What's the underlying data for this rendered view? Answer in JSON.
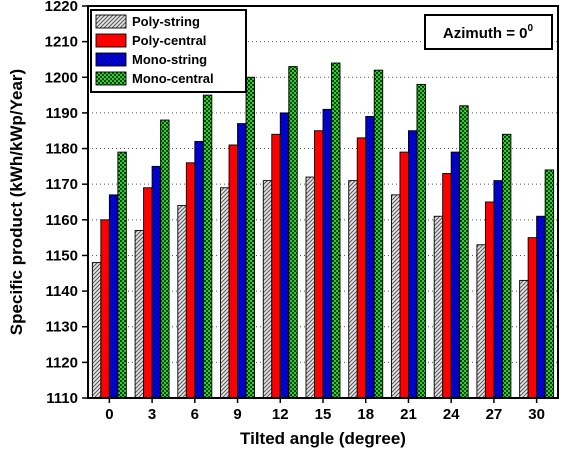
{
  "chart_data": {
    "type": "bar",
    "xlabel": "Tilted angle (degree)",
    "ylabel": "Specific product (kWh/kWp/Year)",
    "categories": [
      "0",
      "3",
      "6",
      "9",
      "12",
      "15",
      "18",
      "21",
      "24",
      "27",
      "30"
    ],
    "ylim": [
      1110,
      1220
    ],
    "yticks": [
      1110,
      1120,
      1130,
      1140,
      1150,
      1160,
      1170,
      1180,
      1190,
      1200,
      1210,
      1220
    ],
    "grid": "horizontal-dotted",
    "legend_position": "top-left",
    "annotation": {
      "text": "Azimuth = 0",
      "superscript": "0",
      "position": "top-right"
    },
    "series": [
      {
        "name": "Poly-string",
        "fill": "hatch-diagonal",
        "colors": {
          "fill": "#bdbdbd",
          "stroke": "#000000"
        },
        "values": [
          1148,
          1157,
          1164,
          1169,
          1171,
          1172,
          1171,
          1167,
          1161,
          1153,
          1143
        ]
      },
      {
        "name": "Poly-central",
        "fill": "solid",
        "colors": {
          "fill": "#ff0000",
          "stroke": "#000000"
        },
        "values": [
          1160,
          1169,
          1176,
          1181,
          1184,
          1185,
          1183,
          1179,
          1173,
          1165,
          1155
        ]
      },
      {
        "name": "Mono-string",
        "fill": "hatch-diagonal",
        "colors": {
          "fill": "#0000ff",
          "stroke": "#000000"
        },
        "values": [
          1167,
          1175,
          1182,
          1187,
          1190,
          1191,
          1189,
          1185,
          1179,
          1171,
          1161
        ]
      },
      {
        "name": "Mono-central",
        "fill": "checker",
        "colors": {
          "fill": "#33cc33",
          "stroke": "#000000"
        },
        "values": [
          1179,
          1188,
          1195,
          1200,
          1203,
          1204,
          1202,
          1198,
          1192,
          1184,
          1174
        ]
      }
    ]
  }
}
